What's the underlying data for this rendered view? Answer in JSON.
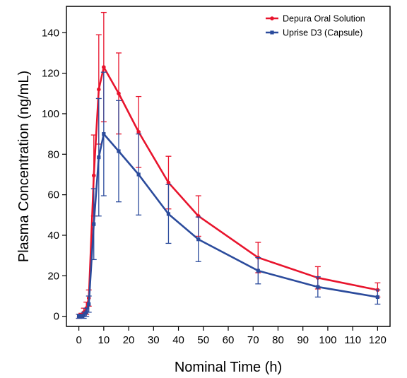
{
  "chart_data": {
    "type": "line",
    "xlabel": "Nominal Time (h)",
    "ylabel": "Plasma Concentration (ng/mL)",
    "xlim": [
      -5,
      125
    ],
    "ylim": [
      -5,
      153
    ],
    "xticks": [
      0,
      10,
      20,
      30,
      40,
      50,
      60,
      70,
      80,
      90,
      100,
      110,
      120
    ],
    "yticks": [
      0,
      20,
      40,
      60,
      80,
      100,
      120,
      140
    ],
    "grid": false,
    "legend_position": "top-right",
    "series": [
      {
        "name": "Depura Oral Solution",
        "color": "#e8142d",
        "marker": "circle",
        "x": [
          0,
          1,
          2,
          3,
          4,
          6,
          8,
          10,
          16,
          24,
          36,
          48,
          72,
          96,
          120
        ],
        "y": [
          0,
          0.5,
          2,
          4,
          9,
          69.5,
          112,
          123,
          110,
          91,
          66,
          49.5,
          29,
          19,
          13
        ],
        "err": [
          1,
          1,
          2,
          3,
          4,
          20,
          27,
          27,
          20,
          17.5,
          13,
          10,
          7.5,
          5.5,
          3.5
        ]
      },
      {
        "name": "Uprise D3 (Capsule)",
        "color": "#2b4b9c",
        "marker": "square",
        "x": [
          0,
          1,
          2,
          3,
          4,
          6,
          8,
          10,
          16,
          24,
          36,
          48,
          72,
          96,
          120
        ],
        "y": [
          0,
          0,
          0.5,
          2,
          6,
          45.5,
          78.5,
          90,
          81.5,
          70,
          50.5,
          38,
          22.5,
          14.5,
          9.5
        ],
        "err": [
          1,
          0.8,
          1.5,
          2,
          4,
          17.5,
          29,
          30.5,
          25,
          20,
          14.5,
          11,
          6.5,
          5,
          3.5
        ]
      }
    ]
  }
}
